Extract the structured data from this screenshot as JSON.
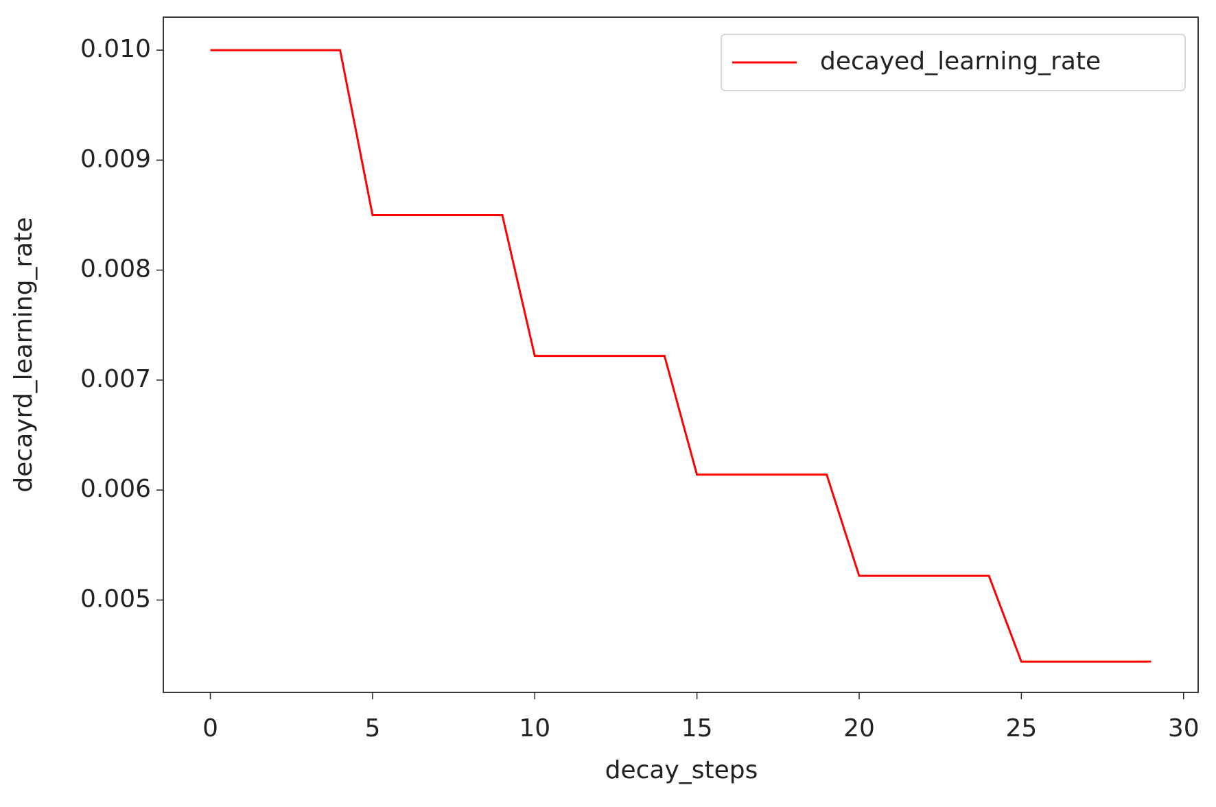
{
  "chart_data": {
    "type": "line",
    "x_label": "decay_steps",
    "y_label": "decayrd_learning_rate",
    "x": [
      0,
      1,
      2,
      3,
      4,
      5,
      6,
      7,
      8,
      9,
      10,
      11,
      12,
      13,
      14,
      15,
      16,
      17,
      18,
      19,
      20,
      21,
      22,
      23,
      24,
      25,
      26,
      27,
      28,
      29
    ],
    "series": [
      {
        "name": "decayed_learning_rate",
        "color": "#ff0000",
        "values": [
          0.01,
          0.01,
          0.01,
          0.01,
          0.01,
          0.0085,
          0.0085,
          0.0085,
          0.0085,
          0.0085,
          0.00722,
          0.00722,
          0.00722,
          0.00722,
          0.00722,
          0.00614,
          0.00614,
          0.00614,
          0.00614,
          0.00614,
          0.00522,
          0.00522,
          0.00522,
          0.00522,
          0.00522,
          0.00444,
          0.00444,
          0.00444,
          0.00444,
          0.00444
        ]
      }
    ],
    "xlim": [
      -1.45,
      30.45
    ],
    "ylim": [
      0.00416,
      0.0103
    ],
    "xticks": [
      0,
      5,
      10,
      15,
      20,
      25,
      30
    ],
    "yticks": [
      0.005,
      0.006,
      0.007,
      0.008,
      0.009,
      {
        "value": 0.01,
        "label": "0.010"
      }
    ],
    "legend": "upper right",
    "grid": false
  }
}
